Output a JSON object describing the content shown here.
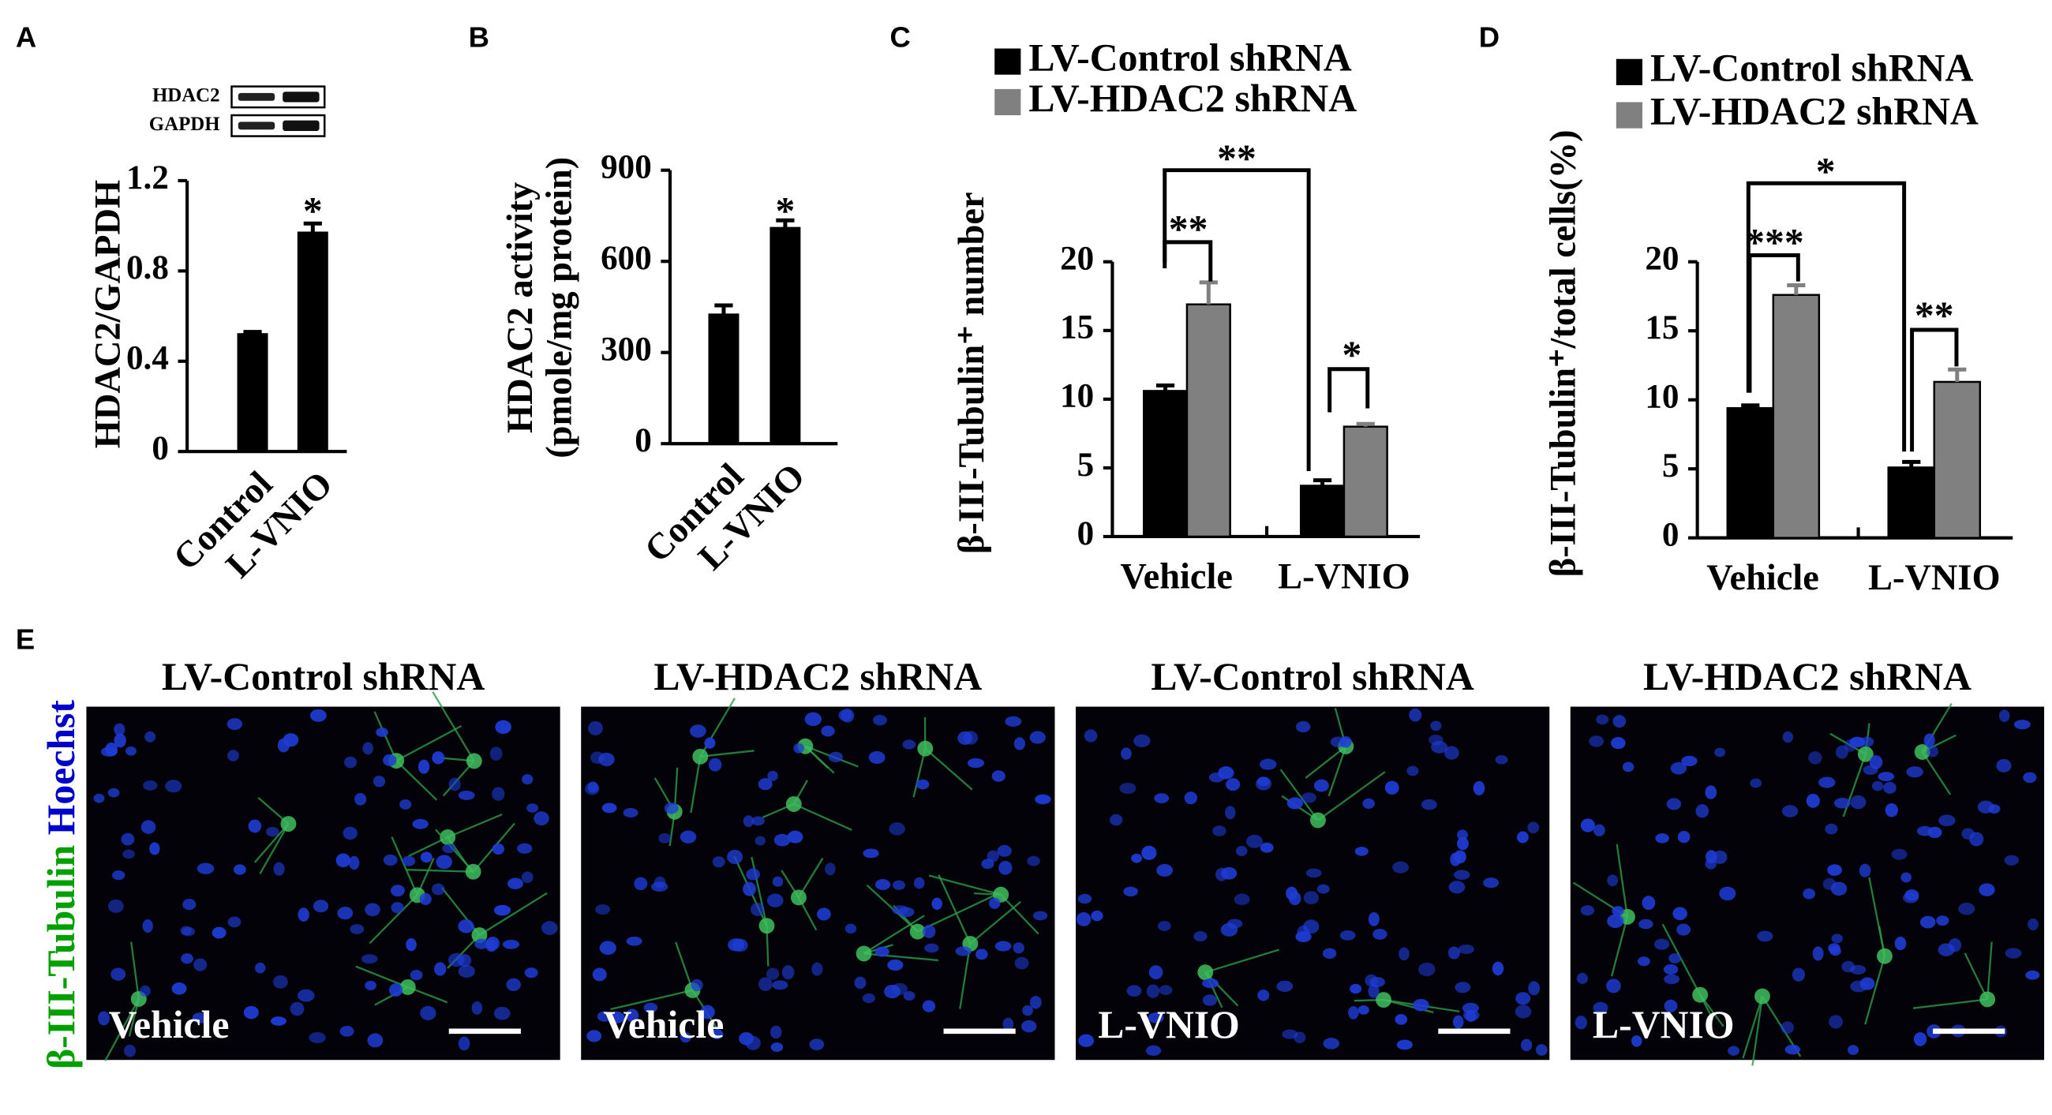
{
  "chart_data": [
    {
      "type": "bar",
      "label": "A",
      "blot_labels": [
        "HDAC2",
        "GAPDH"
      ],
      "ylabel": "HDAC2/GAPDH",
      "categories": [
        "Control",
        "L-VNIO"
      ],
      "values": [
        0.52,
        0.97
      ],
      "errors": [
        0.01,
        0.04
      ],
      "color": "#000000",
      "ylim": [
        0,
        1.2
      ],
      "yticks": [
        0,
        0.4,
        0.8,
        1.2
      ],
      "annotations": [
        "*"
      ]
    },
    {
      "type": "bar",
      "label": "B",
      "ylabel": [
        "HDAC2 activity",
        "(pmole/mg protein)"
      ],
      "categories": [
        "Control",
        "L-VNIO"
      ],
      "values": [
        425,
        710
      ],
      "errors": [
        30,
        25
      ],
      "color": "#000000",
      "ylim": [
        0,
        900
      ],
      "yticks": [
        0,
        300,
        600,
        900
      ],
      "annotations": [
        "*"
      ]
    },
    {
      "type": "grouped_bar",
      "label": "C",
      "ylabel": "β-III-Tubulin⁺ number",
      "categories": [
        "Vehicle",
        "L-VNIO"
      ],
      "series": [
        {
          "name": "LV-Control shRNA",
          "color": "#000000",
          "values": [
            10.6,
            3.7
          ],
          "errors": [
            0.4,
            0.4
          ]
        },
        {
          "name": "LV-HDAC2 shRNA",
          "color": "#808080",
          "values": [
            16.9,
            8.0
          ],
          "errors": [
            1.6,
            0.2
          ]
        }
      ],
      "ylim": [
        0,
        20
      ],
      "yticks": [
        0,
        5,
        10,
        15,
        20
      ],
      "annotations": [
        "**",
        "**",
        "*"
      ]
    },
    {
      "type": "grouped_bar",
      "label": "D",
      "ylabel": "β-III-Tubulin⁺/total cells(%)",
      "categories": [
        "Vehicle",
        "L-VNIO"
      ],
      "series": [
        {
          "name": "LV-Control shRNA",
          "color": "#000000",
          "values": [
            9.4,
            5.1
          ],
          "errors": [
            0.2,
            0.4
          ]
        },
        {
          "name": "LV-HDAC2 shRNA",
          "color": "#808080",
          "values": [
            17.6,
            11.3
          ],
          "errors": [
            0.7,
            0.9
          ]
        }
      ],
      "ylim": [
        0,
        20
      ],
      "yticks": [
        0,
        5,
        10,
        15,
        20
      ],
      "annotations": [
        "*",
        "***",
        "**"
      ]
    }
  ],
  "image_panel": {
    "label": "E",
    "stain": [
      "β-III-Tubulin",
      "Hoechst"
    ],
    "panels": [
      {
        "title": "LV-Control shRNA",
        "condition": "Vehicle"
      },
      {
        "title": "LV-HDAC2 shRNA",
        "condition": "Vehicle"
      },
      {
        "title": "LV-Control shRNA",
        "condition": "L-VNIO"
      },
      {
        "title": "LV-HDAC2 shRNA",
        "condition": "L-VNIO"
      }
    ]
  }
}
